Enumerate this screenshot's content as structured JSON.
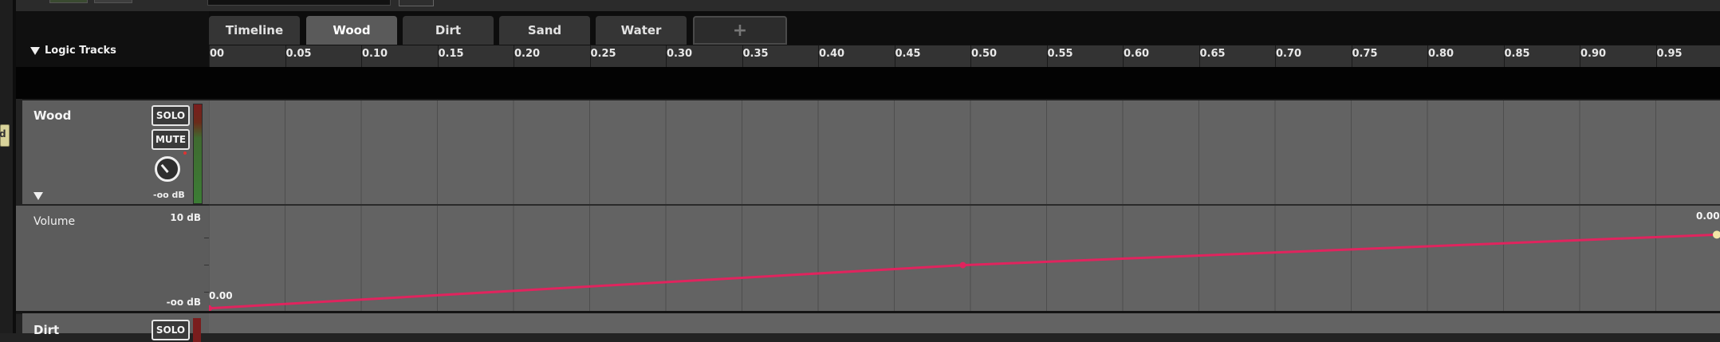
{
  "tabs": [
    {
      "label": "Timeline",
      "active": false
    },
    {
      "label": "Wood",
      "active": true
    },
    {
      "label": "Dirt",
      "active": false
    },
    {
      "label": "Sand",
      "active": false
    },
    {
      "label": "Water",
      "active": false
    }
  ],
  "add_tab_label": "+",
  "logic_tracks_label": "Logic Tracks",
  "ruler_ticks": [
    "00",
    "0.05",
    "0.10",
    "0.15",
    "0.20",
    "0.25",
    "0.30",
    "0.35",
    "0.40",
    "0.45",
    "0.50",
    "0.55",
    "0.60",
    "0.65",
    "0.70",
    "0.75",
    "0.80",
    "0.85",
    "0.90",
    "0.95"
  ],
  "track": {
    "name": "Wood",
    "solo_label": "SOLO",
    "mute_label": "MUTE",
    "gain_label": "-oo dB"
  },
  "volume_lane": {
    "name": "Volume",
    "max_label": "10 dB",
    "min_label": "-oo dB",
    "start_value_label": "0.00",
    "end_value_label": "0.00"
  },
  "automation": {
    "points": [
      {
        "t": 0.0,
        "level": 0.04
      },
      {
        "t": 0.5,
        "level": 0.45
      },
      {
        "t": 1.0,
        "level": 0.74
      }
    ],
    "color": "#e0245e"
  },
  "next_track": {
    "name": "Dirt",
    "solo_label": "SOLO"
  },
  "left_tag_label": "d"
}
